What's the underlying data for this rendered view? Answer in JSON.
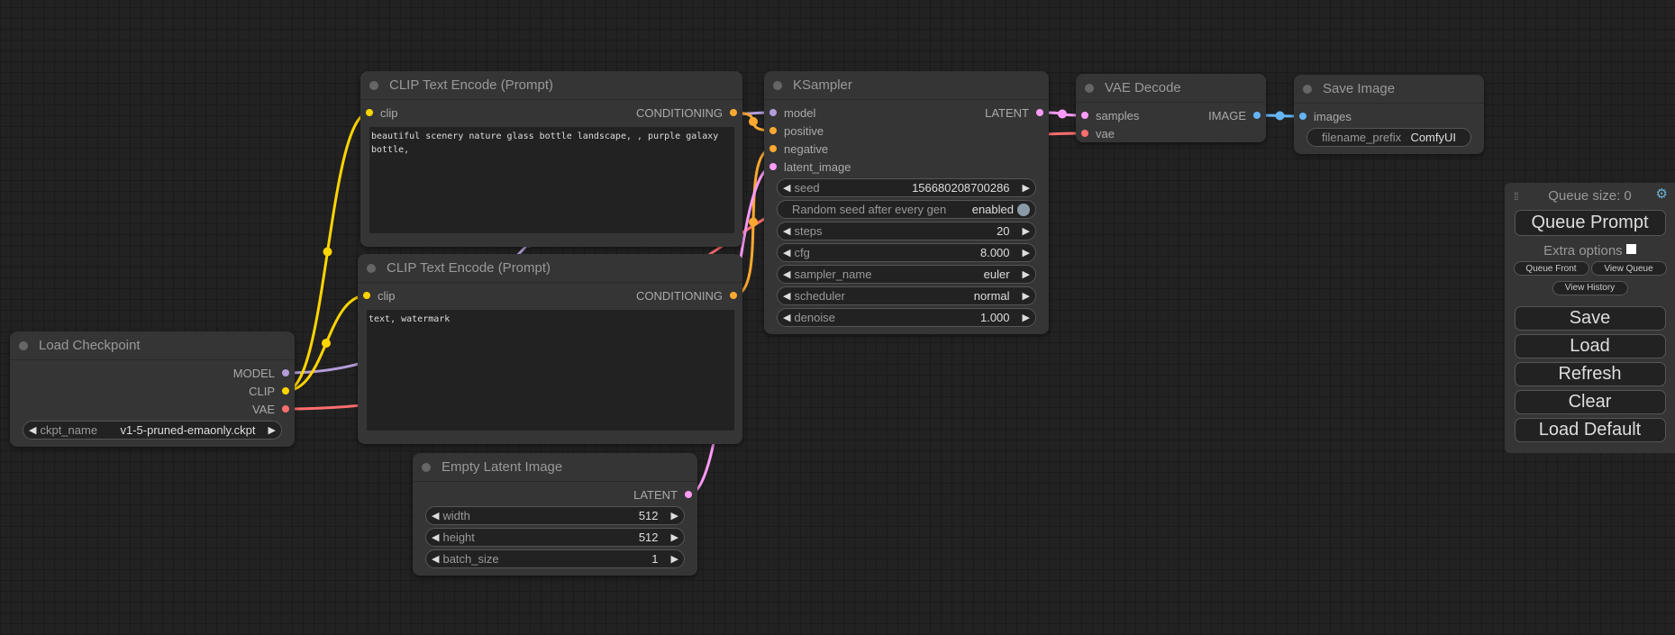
{
  "slot_colors": {
    "MODEL": "#b39ddb",
    "CLIP": "#ffd500",
    "VAE": "#ff6e6e",
    "CONDITIONING": "#ffa931",
    "LATENT": "#ff9cf9",
    "IMAGE": "#64b5f6"
  },
  "nodes": [
    {
      "id": "load_checkpoint",
      "title": "Load Checkpoint",
      "inputs": [],
      "outputs": [
        {
          "label": "MODEL",
          "type": "MODEL"
        },
        {
          "label": "CLIP",
          "type": "CLIP"
        },
        {
          "label": "VAE",
          "type": "VAE"
        }
      ],
      "widgets": [
        {
          "name": "ckpt_name",
          "value": "v1-5-pruned-emaonly.ckpt",
          "type": "combo"
        }
      ]
    },
    {
      "id": "clip_text_positive",
      "title": "CLIP Text Encode (Prompt)",
      "inputs": [
        {
          "label": "clip",
          "type": "CLIP"
        }
      ],
      "outputs": [
        {
          "label": "CONDITIONING",
          "type": "CONDITIONING"
        }
      ],
      "widgets": [],
      "text": "beautiful scenery nature glass bottle landscape, , purple galaxy bottle,"
    },
    {
      "id": "clip_text_negative",
      "title": "CLIP Text Encode (Prompt)",
      "inputs": [
        {
          "label": "clip",
          "type": "CLIP"
        }
      ],
      "outputs": [
        {
          "label": "CONDITIONING",
          "type": "CONDITIONING"
        }
      ],
      "widgets": [],
      "text": "text, watermark"
    },
    {
      "id": "empty_latent",
      "title": "Empty Latent Image",
      "inputs": [],
      "outputs": [
        {
          "label": "LATENT",
          "type": "LATENT"
        }
      ],
      "widgets": [
        {
          "name": "width",
          "value": "512",
          "type": "number"
        },
        {
          "name": "height",
          "value": "512",
          "type": "number"
        },
        {
          "name": "batch_size",
          "value": "1",
          "type": "number"
        }
      ]
    },
    {
      "id": "ksampler",
      "title": "KSampler",
      "inputs": [
        {
          "label": "model",
          "type": "MODEL"
        },
        {
          "label": "positive",
          "type": "CONDITIONING"
        },
        {
          "label": "negative",
          "type": "CONDITIONING"
        },
        {
          "label": "latent_image",
          "type": "LATENT"
        }
      ],
      "outputs": [
        {
          "label": "LATENT",
          "type": "LATENT"
        }
      ],
      "widgets": [
        {
          "name": "seed",
          "value": "156680208700286",
          "type": "number"
        },
        {
          "name": "Random seed after every gen",
          "value": "enabled",
          "type": "toggle"
        },
        {
          "name": "steps",
          "value": "20",
          "type": "number"
        },
        {
          "name": "cfg",
          "value": "8.000",
          "type": "number"
        },
        {
          "name": "sampler_name",
          "value": "euler",
          "type": "combo"
        },
        {
          "name": "scheduler",
          "value": "normal",
          "type": "combo"
        },
        {
          "name": "denoise",
          "value": "1.000",
          "type": "number"
        }
      ]
    },
    {
      "id": "vae_decode",
      "title": "VAE Decode",
      "inputs": [
        {
          "label": "samples",
          "type": "LATENT"
        },
        {
          "label": "vae",
          "type": "VAE"
        }
      ],
      "outputs": [
        {
          "label": "IMAGE",
          "type": "IMAGE"
        }
      ],
      "widgets": []
    },
    {
      "id": "save_image",
      "title": "Save Image",
      "inputs": [
        {
          "label": "images",
          "type": "IMAGE"
        }
      ],
      "outputs": [],
      "widgets": [
        {
          "name": "filename_prefix",
          "value": "ComfyUI",
          "type": "text"
        }
      ]
    }
  ],
  "links": [
    {
      "from": "load_checkpoint",
      "out": 0,
      "to": "ksampler",
      "in": 0,
      "type": "MODEL"
    },
    {
      "from": "load_checkpoint",
      "out": 1,
      "to": "clip_text_positive",
      "in": 0,
      "type": "CLIP"
    },
    {
      "from": "load_checkpoint",
      "out": 1,
      "to": "clip_text_negative",
      "in": 0,
      "type": "CLIP"
    },
    {
      "from": "load_checkpoint",
      "out": 2,
      "to": "vae_decode",
      "in": 1,
      "type": "VAE"
    },
    {
      "from": "clip_text_positive",
      "out": 0,
      "to": "ksampler",
      "in": 1,
      "type": "CONDITIONING"
    },
    {
      "from": "clip_text_negative",
      "out": 0,
      "to": "ksampler",
      "in": 2,
      "type": "CONDITIONING"
    },
    {
      "from": "empty_latent",
      "out": 0,
      "to": "ksampler",
      "in": 3,
      "type": "LATENT"
    },
    {
      "from": "ksampler",
      "out": 0,
      "to": "vae_decode",
      "in": 0,
      "type": "LATENT"
    },
    {
      "from": "vae_decode",
      "out": 0,
      "to": "save_image",
      "in": 0,
      "type": "IMAGE"
    }
  ],
  "panel": {
    "queue_size": "Queue size: 0",
    "queue_prompt": "Queue Prompt",
    "extra_options": "Extra options",
    "extra_options_checked": false,
    "queue_front": "Queue Front",
    "view_queue": "View Queue",
    "view_history": "View History",
    "save": "Save",
    "load": "Load",
    "refresh": "Refresh",
    "clear": "Clear",
    "load_default": "Load Default",
    "drag_handle_icon": "drag-handle-icon",
    "settings_icon": "gear-icon",
    "settings_icon_color": "#6fb3d8"
  }
}
